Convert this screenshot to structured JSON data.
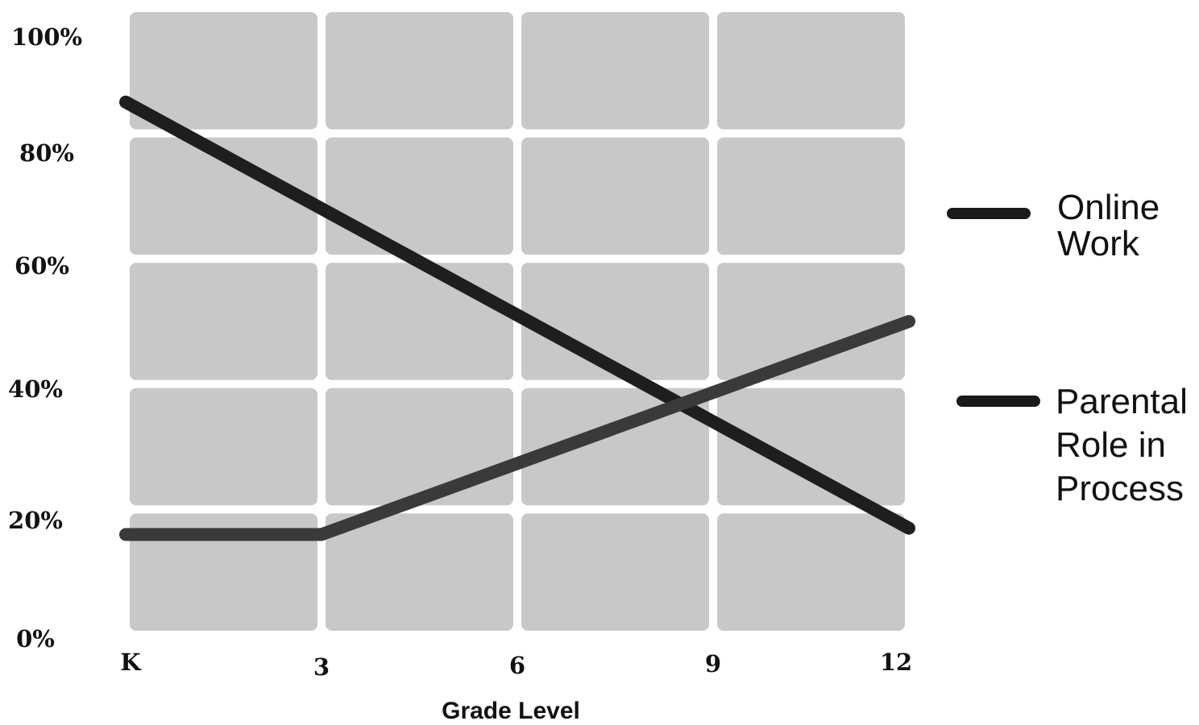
{
  "chart_data": {
    "type": "line",
    "xlabel": "Grade Level",
    "ylabel": "",
    "categories": [
      "K",
      "3",
      "6",
      "9",
      "12"
    ],
    "x": [
      0,
      3,
      6,
      9,
      12
    ],
    "x_ticks": [
      "K",
      "3",
      "6",
      "9",
      "12"
    ],
    "y_ticks": [
      "0%",
      "20%",
      "40%",
      "60%",
      "80%",
      "100%"
    ],
    "ylim": [
      0,
      100
    ],
    "xlim": [
      0,
      12
    ],
    "grid": true,
    "legend_position": "right",
    "series": [
      {
        "name": "Online Work",
        "legend_lines": [
          "Online",
          "Work"
        ],
        "color": "#1e1e1e",
        "points": [
          [
            0,
            85
          ],
          [
            12,
            17
          ]
        ]
      },
      {
        "name": "Parental Role in Process",
        "legend_lines": [
          "Parental",
          "Role in",
          "Process"
        ],
        "color": "#3a3a3a",
        "points": [
          [
            0,
            16
          ],
          [
            3,
            16
          ],
          [
            12,
            50
          ]
        ]
      }
    ]
  }
}
